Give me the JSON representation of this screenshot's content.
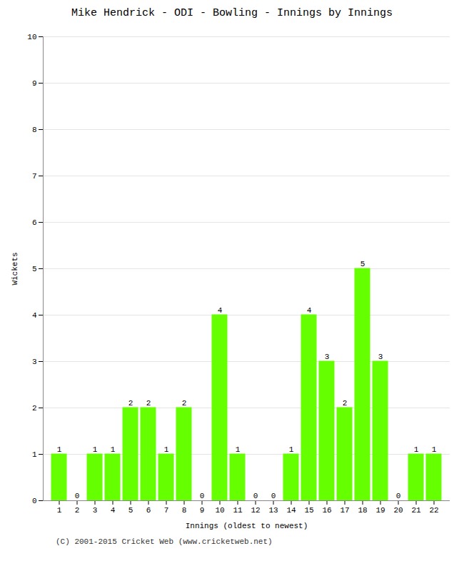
{
  "chart_data": {
    "type": "bar",
    "title": "Mike Hendrick - ODI - Bowling - Innings by Innings",
    "xlabel": "Innings (oldest to newest)",
    "ylabel": "Wickets",
    "categories": [
      1,
      2,
      3,
      4,
      5,
      6,
      7,
      8,
      9,
      10,
      11,
      12,
      13,
      14,
      15,
      16,
      17,
      18,
      19,
      20,
      21,
      22
    ],
    "values": [
      1,
      0,
      1,
      1,
      2,
      2,
      1,
      2,
      0,
      4,
      1,
      0,
      0,
      1,
      4,
      3,
      2,
      5,
      3,
      0,
      1,
      1
    ],
    "color": "#66ff00",
    "ylim": [
      0,
      10
    ],
    "yticks": [
      0,
      1,
      2,
      3,
      4,
      5,
      6,
      7,
      8,
      9,
      10
    ],
    "grid": true,
    "data_labels": true,
    "footer": "(C) 2001-2015 Cricket Web (www.cricketweb.net)"
  }
}
